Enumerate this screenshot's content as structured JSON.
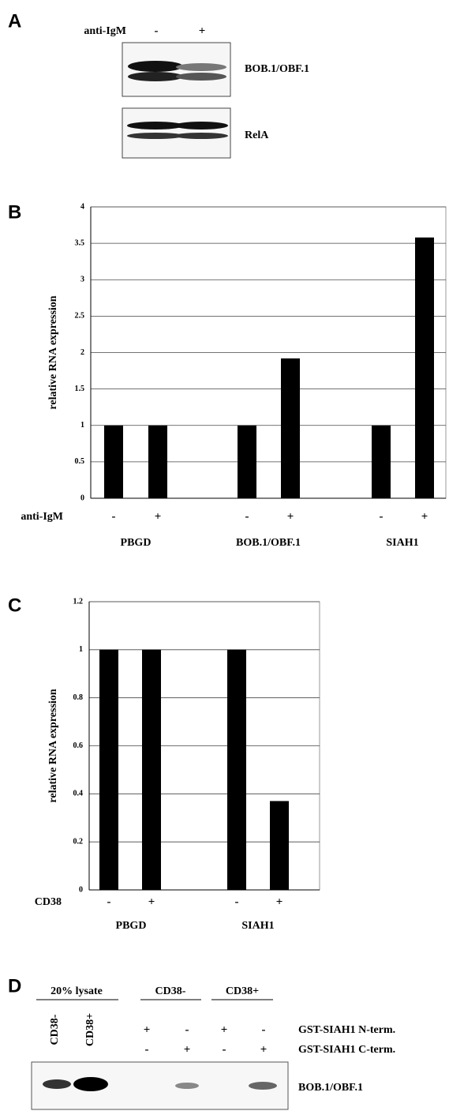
{
  "panel_a": {
    "label": "A",
    "treatment": "anti-IgM",
    "lanes": [
      "-",
      "+"
    ],
    "blots": [
      "BOB.1/OBF.1",
      "RelA"
    ]
  },
  "chart_data": [
    {
      "type": "bar",
      "panel_label": "B",
      "y_label": "relative RNA expression",
      "x_label": "anti-IgM",
      "categories": [
        "-",
        "+",
        "-",
        "+",
        "-",
        "+"
      ],
      "groups": [
        "PBGD",
        "BOB.1/OBF.1",
        "SIAH1"
      ],
      "values": [
        1,
        1,
        1,
        1.92,
        1,
        3.58
      ],
      "color": "#000000",
      "ylim": [
        0,
        4
      ],
      "yticks": [
        0,
        0.5,
        1,
        1.5,
        2,
        2.5,
        3,
        3.5,
        4
      ],
      "grid": true
    },
    {
      "type": "bar",
      "panel_label": "C",
      "y_label": "relative RNA expression",
      "x_label": "CD38",
      "categories": [
        "-",
        "+",
        "-",
        "+"
      ],
      "groups": [
        "PBGD",
        "SIAH1"
      ],
      "values": [
        1,
        1,
        1,
        0.37
      ],
      "color": "#000000",
      "ylim": [
        0,
        1.2
      ],
      "yticks": [
        0,
        0.2,
        0.4,
        0.6,
        0.8,
        1,
        1.2
      ],
      "grid": true
    }
  ],
  "panel_d": {
    "label": "D",
    "lysate_header": "20% lysate",
    "lysate_lanes": [
      "CD38-",
      "CD38+"
    ],
    "pulldown_groups": [
      "CD38-",
      "CD38+"
    ],
    "rows": [
      {
        "label": "GST-SIAH1 N-term.",
        "signs": [
          "+",
          "-",
          "+",
          "-"
        ]
      },
      {
        "label": "GST-SIAH1 C-term.",
        "signs": [
          "-",
          "+",
          "-",
          "+"
        ]
      }
    ],
    "blot": "BOB.1/OBF.1"
  }
}
